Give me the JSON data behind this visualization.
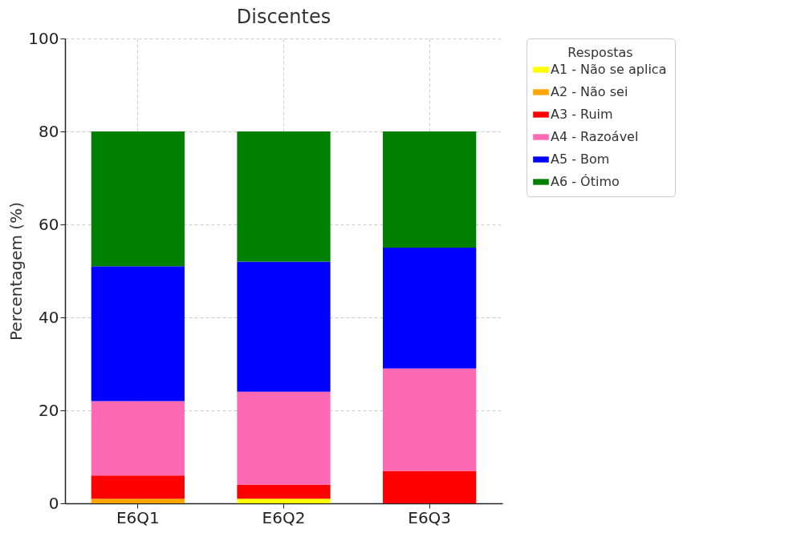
{
  "chart_data": {
    "type": "bar",
    "title": "Discentes",
    "ylabel": "Percentagem (%)",
    "legend_title": "Respostas",
    "categories": [
      "E6Q1",
      "E6Q2",
      "E6Q3"
    ],
    "series": [
      {
        "name": "A1 - Não se aplica",
        "color": "#ffff00",
        "values": [
          0,
          1,
          0
        ]
      },
      {
        "name": "A2 - Não sei",
        "color": "#ffa500",
        "values": [
          1,
          0,
          0
        ]
      },
      {
        "name": "A3 - Ruim",
        "color": "#ff0000",
        "values": [
          5,
          3,
          7
        ]
      },
      {
        "name": "A4 - Razoável",
        "color": "#ff69b4",
        "values": [
          16,
          20,
          22
        ]
      },
      {
        "name": "A5 - Bom",
        "color": "#0000ff",
        "values": [
          29,
          28,
          26
        ]
      },
      {
        "name": "A6 - Ótimo",
        "color": "#008000",
        "values": [
          29,
          28,
          25
        ]
      }
    ],
    "stacked": true,
    "ylim": [
      0,
      100
    ],
    "yticks": [
      0,
      20,
      40,
      60,
      80,
      100
    ],
    "grid": true,
    "legend": "top right"
  }
}
